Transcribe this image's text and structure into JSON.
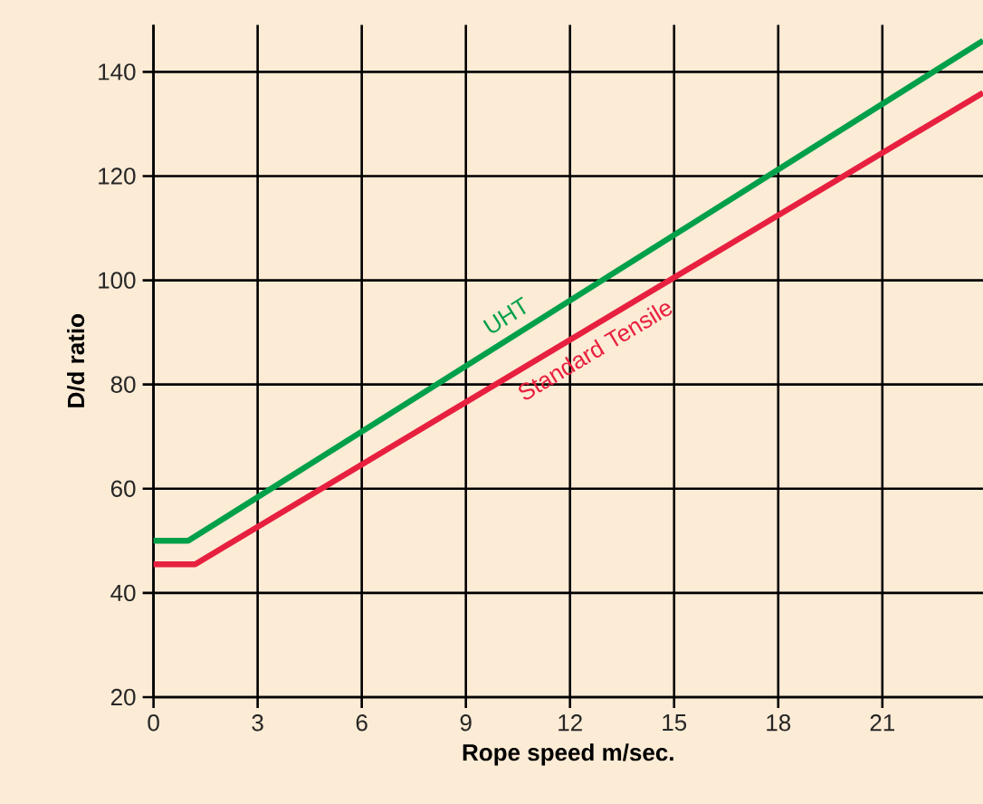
{
  "chart_data": {
    "type": "line",
    "xlabel": "Rope speed m/sec.",
    "ylabel": "D/d ratio",
    "xlim": [
      0,
      23.9
    ],
    "ylim": [
      20,
      149
    ],
    "xticks": [
      0,
      3,
      6,
      9,
      12,
      15,
      18,
      21
    ],
    "yticks": [
      20,
      40,
      60,
      80,
      100,
      120,
      140
    ],
    "grid": true,
    "series": [
      {
        "name": "UHT",
        "color": "#00a04a",
        "x": [
          0,
          1,
          23.9
        ],
        "values": [
          50,
          50,
          146
        ]
      },
      {
        "name": "Standard Tensile",
        "color": "#e8203f",
        "x": [
          0,
          1.2,
          23.9
        ],
        "values": [
          45.5,
          45.5,
          136
        ]
      }
    ]
  }
}
